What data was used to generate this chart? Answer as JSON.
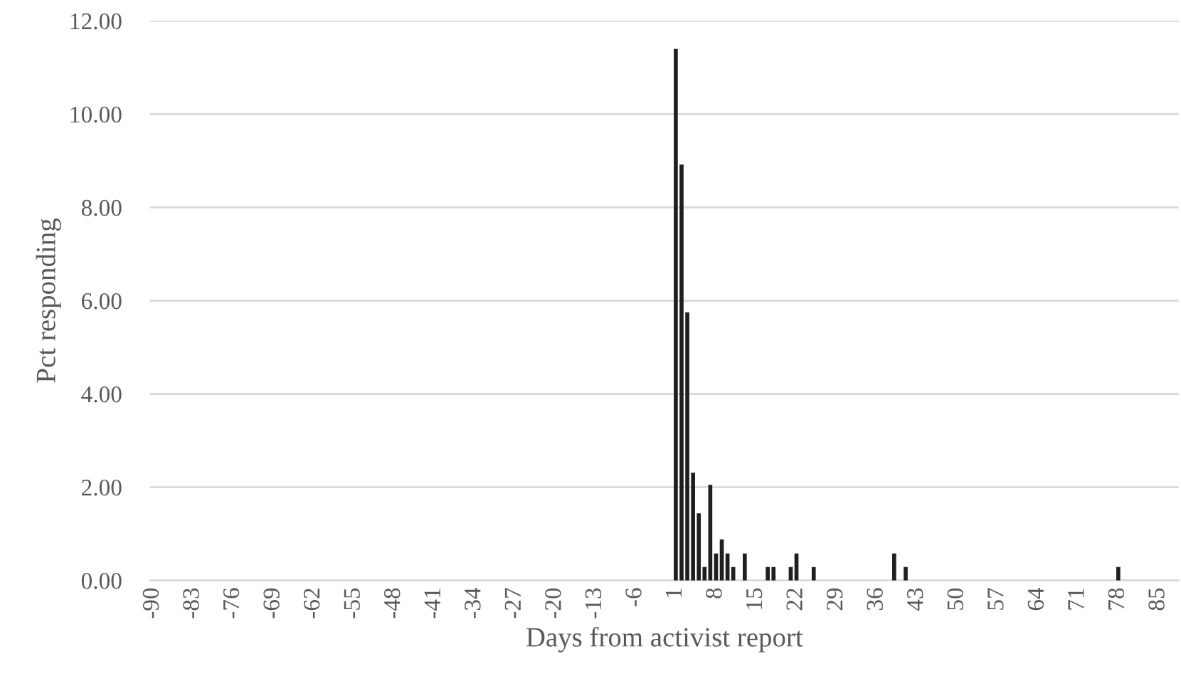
{
  "chart_data": {
    "type": "bar",
    "xlabel": "Days from activist report",
    "ylabel": "Pct responding",
    "categories": [
      "-90",
      null,
      null,
      null,
      null,
      null,
      null,
      "-83",
      null,
      null,
      null,
      null,
      null,
      null,
      "-76",
      null,
      null,
      null,
      null,
      null,
      null,
      "-69",
      null,
      null,
      null,
      null,
      null,
      null,
      "-62",
      null,
      null,
      null,
      null,
      null,
      null,
      "-55",
      null,
      null,
      null,
      null,
      null,
      null,
      "-48",
      null,
      null,
      null,
      null,
      null,
      null,
      "-41",
      null,
      null,
      null,
      null,
      null,
      null,
      "-34",
      null,
      null,
      null,
      null,
      null,
      null,
      "-27",
      null,
      null,
      null,
      null,
      null,
      null,
      "-20",
      null,
      null,
      null,
      null,
      null,
      null,
      "-13",
      null,
      null,
      null,
      null,
      null,
      null,
      "-6",
      null,
      null,
      null,
      null,
      null,
      null,
      "1",
      null,
      null,
      null,
      null,
      null,
      null,
      "8",
      null,
      null,
      null,
      null,
      null,
      null,
      "15",
      null,
      null,
      null,
      null,
      null,
      null,
      "22",
      null,
      null,
      null,
      null,
      null,
      null,
      "29",
      null,
      null,
      null,
      null,
      null,
      null,
      "36",
      null,
      null,
      null,
      null,
      null,
      null,
      "43",
      null,
      null,
      null,
      null,
      null,
      null,
      "50",
      null,
      null,
      null,
      null,
      null,
      null,
      "57",
      null,
      null,
      null,
      null,
      null,
      null,
      "64",
      null,
      null,
      null,
      null,
      null,
      null,
      "71",
      null,
      null,
      null,
      null,
      null,
      null,
      "78",
      null,
      null,
      null,
      null,
      null,
      null,
      "85",
      null,
      null,
      null
    ],
    "values": [
      0,
      0,
      0,
      0,
      0,
      0,
      0,
      0,
      0,
      0,
      0,
      0,
      0,
      0,
      0,
      0,
      0,
      0,
      0,
      0,
      0,
      0,
      0,
      0,
      0,
      0,
      0,
      0,
      0,
      0,
      0,
      0,
      0,
      0,
      0,
      0,
      0,
      0,
      0,
      0,
      0,
      0,
      0,
      0,
      0,
      0,
      0,
      0,
      0,
      0,
      0,
      0,
      0,
      0,
      0,
      0,
      0,
      0,
      0,
      0,
      0,
      0,
      0,
      0,
      0,
      0,
      0,
      0,
      0,
      0,
      0,
      0,
      0,
      0,
      0,
      0,
      0,
      0,
      0,
      0,
      0,
      0,
      0,
      0,
      0,
      0,
      0,
      0,
      0,
      0,
      0,
      11.4,
      8.92,
      5.75,
      2.31,
      1.44,
      0.29,
      2.05,
      0.58,
      0.88,
      0.58,
      0.29,
      0,
      0.58,
      0,
      0,
      0,
      0.29,
      0.29,
      0,
      0,
      0.29,
      0.58,
      0,
      0,
      0.29,
      0,
      0,
      0,
      0,
      0,
      0,
      0,
      0,
      0,
      0,
      0,
      0,
      0,
      0.58,
      0,
      0.29,
      0,
      0,
      0,
      0,
      0,
      0,
      0,
      0,
      0,
      0,
      0,
      0,
      0,
      0,
      0,
      0,
      0,
      0,
      0,
      0,
      0,
      0,
      0,
      0,
      0,
      0,
      0,
      0,
      0,
      0,
      0,
      0,
      0,
      0,
      0,
      0,
      0.29,
      0,
      0,
      0,
      0,
      0,
      0,
      0,
      0,
      0,
      0
    ],
    "color": "#1f1f1f",
    "ylim": [
      0,
      12
    ],
    "yticks": [
      {
        "value": 0,
        "label": "0.00"
      },
      {
        "value": 2,
        "label": "2.00"
      },
      {
        "value": 4,
        "label": "4.00"
      },
      {
        "value": 6,
        "label": "6.00"
      },
      {
        "value": 8,
        "label": "8.00"
      },
      {
        "value": 10,
        "label": "10.00"
      },
      {
        "value": 12,
        "label": "12.00"
      }
    ],
    "grid": "y",
    "legend": false
  }
}
